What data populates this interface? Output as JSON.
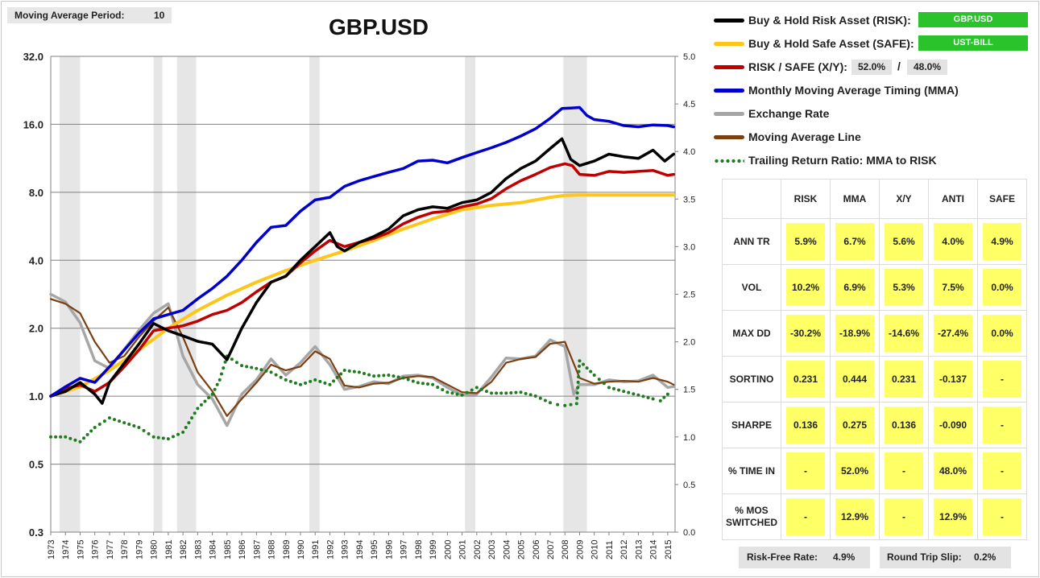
{
  "moving_average": {
    "label": "Moving Average Period:",
    "value": "10"
  },
  "title": "GBP.USD",
  "legend": {
    "items": [
      {
        "label": "Buy & Hold Risk Asset (RISK):",
        "color": "#000000",
        "style": "line"
      },
      {
        "label": "Buy & Hold Safe Asset (SAFE):",
        "color": "#ffc61a",
        "style": "line"
      },
      {
        "label": "RISK / SAFE (X/Y):",
        "color": "#c00000",
        "style": "line"
      },
      {
        "label": "Monthly Moving Average Timing (MMA)",
        "color": "#0000cc",
        "style": "line"
      },
      {
        "label": "Exchange Rate",
        "color": "#a6a6a6",
        "style": "line"
      },
      {
        "label": "Moving Average Line",
        "color": "#7b3f10",
        "style": "line"
      },
      {
        "label": "Trailing Return Ratio: MMA to RISK",
        "color": "#1e7b1e",
        "style": "dots"
      }
    ],
    "risk_asset": "GBP.USD",
    "safe_asset": "UST-BILL",
    "risk_pct": "52.0%",
    "slash": "/",
    "safe_pct": "48.0%"
  },
  "stats": {
    "columns": [
      "RISK",
      "MMA",
      "X/Y",
      "ANTI",
      "SAFE"
    ],
    "rows": [
      {
        "label": "ANN TR",
        "values": [
          "5.9%",
          "6.7%",
          "5.6%",
          "4.0%",
          "4.9%"
        ]
      },
      {
        "label": "VOL",
        "values": [
          "10.2%",
          "6.9%",
          "5.3%",
          "7.5%",
          "0.0%"
        ]
      },
      {
        "label": "MAX DD",
        "values": [
          "-30.2%",
          "-18.9%",
          "-14.6%",
          "-27.4%",
          "0.0%"
        ]
      },
      {
        "label": "SORTINO",
        "values": [
          "0.231",
          "0.444",
          "0.231",
          "-0.137",
          "-"
        ]
      },
      {
        "label": "SHARPE",
        "values": [
          "0.136",
          "0.275",
          "0.136",
          "-0.090",
          "-"
        ]
      },
      {
        "label": "% TIME IN",
        "values": [
          "-",
          "52.0%",
          "-",
          "48.0%",
          "-"
        ]
      },
      {
        "label": "% MOS SWITCHED",
        "values": [
          "-",
          "12.9%",
          "-",
          "12.9%",
          "-"
        ]
      }
    ]
  },
  "footer": {
    "risk_free_label": "Risk-Free Rate:",
    "risk_free_value": "4.9%",
    "slip_label": "Round Trip Slip:",
    "slip_value": "0.2%"
  },
  "chart_data": {
    "type": "line",
    "x_range": [
      1973,
      2015.5
    ],
    "x_tick_labels": [
      "1973",
      "1974",
      "1975",
      "1976",
      "1977",
      "1978",
      "1979",
      "1980",
      "1981",
      "1982",
      "1983",
      "1984",
      "1985",
      "1986",
      "1987",
      "1988",
      "1989",
      "1990",
      "1991",
      "1992",
      "1993",
      "1994",
      "1995",
      "1996",
      "1997",
      "1998",
      "1999",
      "2000",
      "2001",
      "2002",
      "2003",
      "2004",
      "2005",
      "2006",
      "2007",
      "2008",
      "2009",
      "2010",
      "2011",
      "2012",
      "2013",
      "2014",
      "2015"
    ],
    "y_left": {
      "scale": "log2",
      "range": [
        0.25,
        32
      ],
      "tick_values": [
        0.25,
        0.5,
        1,
        2,
        4,
        8,
        16,
        32
      ],
      "tick_labels": [
        "0.3",
        "0.5",
        "1.0",
        "2.0",
        "4.0",
        "8.0",
        "16.0",
        "32.0"
      ]
    },
    "y_right": {
      "scale": "linear",
      "range": [
        0,
        5
      ],
      "tick_values": [
        0,
        0.5,
        1,
        1.5,
        2,
        2.5,
        3,
        3.5,
        4,
        4.5,
        5
      ],
      "tick_labels": [
        "0.0",
        "0.5",
        "1.0",
        "1.5",
        "2.0",
        "2.5",
        "3.0",
        "3.5",
        "4.0",
        "4.5",
        "5.0"
      ]
    },
    "grid": "horizontal",
    "shaded_periods": [
      [
        1973.6,
        1975.0
      ],
      [
        1980.0,
        1980.6
      ],
      [
        1981.6,
        1982.9
      ],
      [
        1990.6,
        1991.3
      ],
      [
        2001.2,
        2001.9
      ],
      [
        2007.9,
        2009.5
      ]
    ],
    "series": [
      {
        "name": "Buy & Hold Risk Asset (RISK)",
        "axis": "left",
        "color": "#000000",
        "x": [
          1973,
          1974,
          1975,
          1976,
          1976.5,
          1977,
          1978,
          1979,
          1980,
          1981,
          1982,
          1983,
          1984,
          1985,
          1986,
          1987,
          1988,
          1989,
          1990,
          1991,
          1992,
          1992.5,
          1993,
          1994,
          1995,
          1996,
          1997,
          1998,
          1999,
          2000,
          2001,
          2002,
          2003,
          2004,
          2005,
          2006,
          2007,
          2007.8,
          2008.4,
          2009,
          2010,
          2011,
          2012,
          2013,
          2014,
          2014.8,
          2015.4
        ],
        "y": [
          1.0,
          1.05,
          1.15,
          1.02,
          0.93,
          1.15,
          1.4,
          1.7,
          2.1,
          1.95,
          1.85,
          1.75,
          1.7,
          1.45,
          2.0,
          2.6,
          3.2,
          3.4,
          4.0,
          4.6,
          5.3,
          4.6,
          4.4,
          4.8,
          5.1,
          5.5,
          6.3,
          6.7,
          6.9,
          6.8,
          7.2,
          7.4,
          8.0,
          9.2,
          10.2,
          11.0,
          12.5,
          13.8,
          11.2,
          10.5,
          11.0,
          11.8,
          11.5,
          11.3,
          12.3,
          11.0,
          11.8
        ]
      },
      {
        "name": "Buy & Hold Safe Asset (SAFE)",
        "axis": "left",
        "color": "#ffc61a",
        "x": [
          1973,
          1975,
          1977,
          1979,
          1981,
          1983,
          1985,
          1987,
          1989,
          1991,
          1993,
          1995,
          1997,
          1999,
          2001,
          2003,
          2005,
          2007,
          2008,
          2009,
          2011,
          2013,
          2015.4
        ],
        "y": [
          1.0,
          1.1,
          1.3,
          1.6,
          2.0,
          2.4,
          2.8,
          3.2,
          3.6,
          4.0,
          4.4,
          4.9,
          5.5,
          6.1,
          6.7,
          7.0,
          7.2,
          7.6,
          7.75,
          7.78,
          7.78,
          7.78,
          7.78
        ]
      },
      {
        "name": "RISK / SAFE (X/Y)",
        "axis": "left",
        "color": "#c00000",
        "x": [
          1973,
          1974,
          1975,
          1976,
          1977,
          1978,
          1979,
          1980,
          1981,
          1982,
          1983,
          1984,
          1985,
          1986,
          1987,
          1988,
          1989,
          1990,
          1991,
          1992,
          1993,
          1994,
          1995,
          1996,
          1997,
          1998,
          1999,
          2000,
          2001,
          2002,
          2003,
          2004,
          2005,
          2006,
          2007,
          2008,
          2008.5,
          2009,
          2010,
          2011,
          2012,
          2013,
          2014,
          2015,
          2015.4
        ],
        "y": [
          1.0,
          1.08,
          1.12,
          1.05,
          1.15,
          1.35,
          1.6,
          1.95,
          2.0,
          2.05,
          2.15,
          2.3,
          2.4,
          2.6,
          2.9,
          3.2,
          3.4,
          3.9,
          4.4,
          4.9,
          4.6,
          4.8,
          5.0,
          5.3,
          5.8,
          6.2,
          6.5,
          6.6,
          6.9,
          7.1,
          7.5,
          8.3,
          9.0,
          9.6,
          10.3,
          10.7,
          10.5,
          9.6,
          9.5,
          9.9,
          9.8,
          9.9,
          10.0,
          9.5,
          9.6
        ]
      },
      {
        "name": "Monthly Moving Average Timing (MMA)",
        "axis": "left",
        "color": "#0000cc",
        "x": [
          1973,
          1974,
          1975,
          1976,
          1977,
          1978,
          1979,
          1980,
          1981,
          1982,
          1983,
          1984,
          1985,
          1986,
          1987,
          1988,
          1989,
          1990,
          1991,
          1992,
          1993,
          1994,
          1995,
          1996,
          1997,
          1998,
          1999,
          2000,
          2001,
          2002,
          2003,
          2004,
          2005,
          2006,
          2007,
          2007.8,
          2008.5,
          2009,
          2009.5,
          2010,
          2011,
          2012,
          2013,
          2014,
          2015,
          2015.4
        ],
        "y": [
          1.0,
          1.1,
          1.2,
          1.15,
          1.35,
          1.6,
          1.9,
          2.2,
          2.3,
          2.4,
          2.7,
          3.0,
          3.4,
          4.0,
          4.8,
          5.6,
          5.7,
          6.6,
          7.4,
          7.6,
          8.5,
          9.0,
          9.4,
          9.8,
          10.2,
          11.0,
          11.1,
          10.8,
          11.4,
          12.0,
          12.6,
          13.3,
          14.2,
          15.3,
          17.0,
          18.8,
          18.9,
          19.0,
          17.5,
          16.8,
          16.5,
          15.8,
          15.6,
          15.9,
          15.8,
          15.6
        ]
      },
      {
        "name": "Exchange Rate",
        "axis": "right",
        "color": "#a6a6a6",
        "x": [
          1973,
          1974,
          1975,
          1976,
          1977,
          1978,
          1979,
          1980,
          1981,
          1982,
          1983,
          1984,
          1985,
          1986,
          1987,
          1988,
          1989,
          1990,
          1991,
          1992,
          1993,
          1994,
          1995,
          1996,
          1997,
          1998,
          1999,
          2000,
          2001,
          2002,
          2003,
          2004,
          2005,
          2006,
          2007,
          2008,
          2008.6,
          2009,
          2010,
          2011,
          2012,
          2013,
          2014,
          2015,
          2015.4
        ],
        "y": [
          2.5,
          2.42,
          2.2,
          1.8,
          1.72,
          1.92,
          2.12,
          2.3,
          2.4,
          1.85,
          1.55,
          1.4,
          1.12,
          1.45,
          1.6,
          1.82,
          1.65,
          1.78,
          1.95,
          1.76,
          1.5,
          1.53,
          1.58,
          1.56,
          1.64,
          1.65,
          1.62,
          1.52,
          1.44,
          1.45,
          1.63,
          1.83,
          1.82,
          1.85,
          2.02,
          1.95,
          1.45,
          1.55,
          1.55,
          1.6,
          1.58,
          1.59,
          1.65,
          1.52,
          1.53
        ]
      },
      {
        "name": "Moving Average Line",
        "axis": "right",
        "color": "#7b3f10",
        "x": [
          1973,
          1974,
          1975,
          1976,
          1977,
          1978,
          1979,
          1980,
          1981,
          1982,
          1983,
          1984,
          1985,
          1986,
          1987,
          1988,
          1989,
          1990,
          1991,
          1992,
          1993,
          1994,
          1995,
          1996,
          1997,
          1998,
          1999,
          2000,
          2001,
          2002,
          2003,
          2004,
          2005,
          2006,
          2007,
          2008,
          2009,
          2010,
          2011,
          2012,
          2013,
          2014,
          2015,
          2015.4
        ],
        "y": [
          2.45,
          2.4,
          2.3,
          2.0,
          1.78,
          1.85,
          2.05,
          2.22,
          2.36,
          2.05,
          1.68,
          1.48,
          1.22,
          1.4,
          1.57,
          1.76,
          1.7,
          1.74,
          1.9,
          1.82,
          1.54,
          1.52,
          1.56,
          1.57,
          1.62,
          1.64,
          1.63,
          1.55,
          1.47,
          1.46,
          1.58,
          1.78,
          1.82,
          1.84,
          1.98,
          2.0,
          1.62,
          1.56,
          1.58,
          1.59,
          1.58,
          1.62,
          1.58,
          1.55
        ]
      },
      {
        "name": "Trailing Return Ratio: MMA to RISK",
        "axis": "right",
        "color": "#1e7b1e",
        "style": "dots",
        "x": [
          1973,
          1974,
          1975,
          1976,
          1977,
          1978,
          1979,
          1980,
          1981,
          1982,
          1983,
          1984,
          1984.5,
          1985,
          1986,
          1987,
          1988,
          1989,
          1990,
          1991,
          1992,
          1993,
          1994,
          1995,
          1996,
          1997,
          1998,
          1999,
          2000,
          2001,
          2002,
          2003,
          2004,
          2005,
          2006,
          2007,
          2007.5,
          2008,
          2008.8,
          2009,
          2010,
          2011,
          2012,
          2013,
          2014,
          2014.5,
          2015,
          2015.4
        ],
        "y": [
          1.0,
          1.0,
          0.95,
          1.1,
          1.2,
          1.15,
          1.1,
          1.0,
          0.98,
          1.05,
          1.3,
          1.45,
          1.6,
          1.85,
          1.75,
          1.72,
          1.68,
          1.6,
          1.55,
          1.6,
          1.55,
          1.7,
          1.68,
          1.64,
          1.65,
          1.62,
          1.57,
          1.55,
          1.47,
          1.44,
          1.52,
          1.46,
          1.46,
          1.47,
          1.43,
          1.36,
          1.34,
          1.33,
          1.35,
          1.8,
          1.65,
          1.52,
          1.48,
          1.44,
          1.4,
          1.38,
          1.45,
          1.43
        ]
      }
    ]
  }
}
